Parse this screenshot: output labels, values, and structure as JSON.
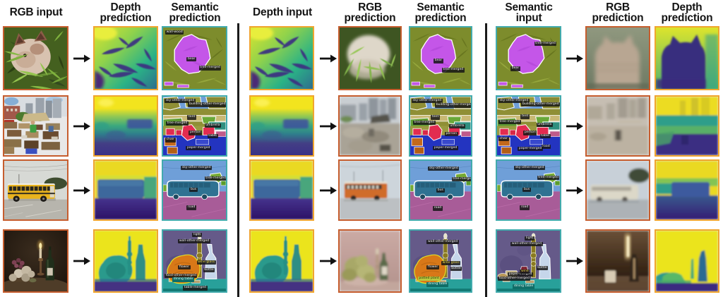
{
  "figure": {
    "groups": [
      {
        "input_line1": "RGB input",
        "input_line2": "",
        "col2_line1": "Depth",
        "col2_line2": "prediction",
        "col3_line1": "Semantic",
        "col3_line2": "prediction"
      },
      {
        "input_line1": "Depth input",
        "input_line2": "",
        "col2_line1": "RGB",
        "col2_line2": "prediction",
        "col3_line1": "Semantic",
        "col3_line2": "prediction"
      },
      {
        "input_line1": "Semantic",
        "input_line2": "input",
        "col2_line1": "RGB",
        "col2_line2": "prediction",
        "col3_line1": "Depth",
        "col3_line2": "prediction"
      }
    ],
    "scenes": [
      {
        "id": "row-1",
        "semantic_labels": [
          "wall-wood",
          "bear",
          "tree-merged"
        ]
      },
      {
        "id": "row-2",
        "semantic_labels": [
          "sky-other-merged",
          "building-other-merged",
          "tent",
          "tree-merged",
          "umbrella",
          "person",
          "table",
          "chair",
          "paper-merged",
          "road"
        ]
      },
      {
        "id": "row-3",
        "semantic_labels": [
          "sky-other-merged",
          "tree-merged",
          "bus",
          "road"
        ]
      },
      {
        "id": "row-4",
        "semantic_labels": [
          "light",
          "wall-other-merged",
          "flower",
          "wine glass",
          "bottle",
          "candle",
          "potted plant",
          "dining table",
          "table-merged",
          "food-other-merged",
          "paper-merged",
          "wine"
        ]
      }
    ],
    "colors": {
      "rgb_border": "#C65D2E",
      "depth_border": "#F0A52F",
      "semantic_border": "#42ABAD",
      "divider": "#1A1A1A",
      "background": "#FFFFFF",
      "arrow": "#111111"
    }
  }
}
